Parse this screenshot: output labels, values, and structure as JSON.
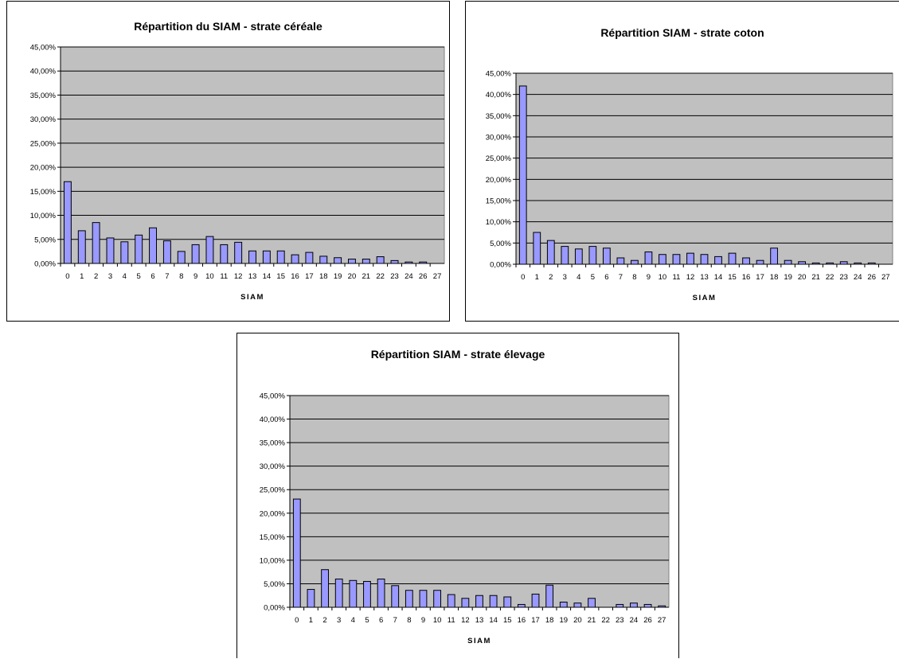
{
  "chart_data": [
    {
      "type": "bar",
      "title": "Répartition du SIAM - strate céréale",
      "xlabel": "SIAM",
      "ylabel": "",
      "ylim": [
        0,
        0.45
      ],
      "yticks": [
        "0,00%",
        "5,00%",
        "10,00%",
        "15,00%",
        "20,00%",
        "25,00%",
        "30,00%",
        "35,00%",
        "40,00%",
        "45,00%"
      ],
      "categories": [
        "0",
        "1",
        "2",
        "3",
        "4",
        "5",
        "6",
        "7",
        "8",
        "9",
        "10",
        "11",
        "12",
        "13",
        "14",
        "15",
        "16",
        "17",
        "18",
        "19",
        "20",
        "21",
        "22",
        "23",
        "24",
        "26",
        "27"
      ],
      "values": [
        0.17,
        0.068,
        0.085,
        0.053,
        0.045,
        0.059,
        0.074,
        0.047,
        0.025,
        0.039,
        0.056,
        0.039,
        0.044,
        0.026,
        0.026,
        0.026,
        0.018,
        0.023,
        0.015,
        0.012,
        0.009,
        0.009,
        0.014,
        0.006,
        0.003,
        0.003,
        0.0
      ],
      "grid": true,
      "legend": "none",
      "colors": {
        "bar": "#9999ff",
        "bar_edge": "#000000",
        "plot_bg": "#c0c0c0"
      }
    },
    {
      "type": "bar",
      "title": "Répartition SIAM - strate coton",
      "xlabel": "SIAM",
      "ylabel": "",
      "ylim": [
        0,
        0.45
      ],
      "yticks": [
        "0,00%",
        "5,00%",
        "10,00%",
        "15,00%",
        "20,00%",
        "25,00%",
        "30,00%",
        "35,00%",
        "40,00%",
        "45,00%"
      ],
      "categories": [
        "0",
        "1",
        "2",
        "3",
        "4",
        "5",
        "6",
        "7",
        "8",
        "9",
        "10",
        "11",
        "12",
        "13",
        "14",
        "15",
        "16",
        "17",
        "18",
        "19",
        "20",
        "21",
        "22",
        "23",
        "24",
        "26",
        "27"
      ],
      "values": [
        0.42,
        0.075,
        0.056,
        0.042,
        0.036,
        0.042,
        0.038,
        0.015,
        0.009,
        0.029,
        0.023,
        0.023,
        0.026,
        0.023,
        0.018,
        0.026,
        0.015,
        0.009,
        0.038,
        0.009,
        0.006,
        0.003,
        0.003,
        0.006,
        0.003,
        0.003,
        0.0
      ],
      "grid": true,
      "legend": "none",
      "colors": {
        "bar": "#9999ff",
        "bar_edge": "#000000",
        "plot_bg": "#c0c0c0"
      }
    },
    {
      "type": "bar",
      "title": "Répartition SIAM - strate élevage",
      "xlabel": "SIAM",
      "ylabel": "",
      "ylim": [
        0,
        0.45
      ],
      "yticks": [
        "0,00%",
        "5,00%",
        "10,00%",
        "15,00%",
        "20,00%",
        "25,00%",
        "30,00%",
        "35,00%",
        "40,00%",
        "45,00%"
      ],
      "categories": [
        "0",
        "1",
        "2",
        "3",
        "4",
        "5",
        "6",
        "7",
        "8",
        "9",
        "10",
        "11",
        "12",
        "13",
        "14",
        "15",
        "16",
        "17",
        "18",
        "19",
        "20",
        "21",
        "22",
        "23",
        "24",
        "26",
        "27"
      ],
      "values": [
        0.23,
        0.038,
        0.08,
        0.06,
        0.057,
        0.055,
        0.06,
        0.046,
        0.036,
        0.036,
        0.036,
        0.027,
        0.019,
        0.025,
        0.025,
        0.022,
        0.006,
        0.028,
        0.047,
        0.011,
        0.009,
        0.019,
        0.0,
        0.006,
        0.009,
        0.006,
        0.003
      ],
      "grid": true,
      "legend": "none",
      "colors": {
        "bar": "#9999ff",
        "bar_edge": "#000000",
        "plot_bg": "#c0c0c0"
      }
    }
  ]
}
